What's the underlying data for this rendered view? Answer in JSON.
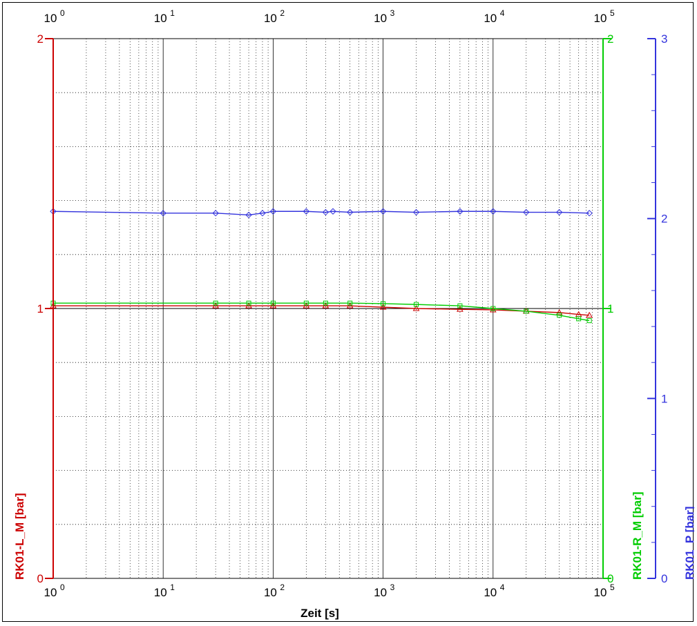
{
  "chart_data": {
    "type": "line",
    "x_scale": "log",
    "x_lim": [
      1,
      100000
    ],
    "x_ticks": [
      1,
      10,
      100,
      1000,
      10000,
      100000
    ],
    "x_tick_base": "10",
    "x_tick_exps": [
      "0",
      "1",
      "2",
      "3",
      "4",
      "5"
    ],
    "xlabel": "Zeit [s]",
    "grid": true,
    "axes": {
      "left": {
        "label": "RK01-L_M [bar]",
        "color": "#cc0000",
        "lim": [
          0,
          2
        ],
        "ticks": [
          "0",
          "1",
          "2"
        ]
      },
      "right1": {
        "label": "RK01-R_M [bar]",
        "color": "#00cc00",
        "lim": [
          0,
          2
        ],
        "ticks": [
          "0",
          "1",
          "2"
        ]
      },
      "right2": {
        "label": "RK01_P [bar]",
        "color": "#3333dd",
        "lim": [
          0,
          3
        ],
        "ticks": [
          "0",
          "1",
          "2",
          "3"
        ]
      }
    },
    "series": [
      {
        "axis": "left",
        "color": "#cc0000",
        "marker": "triangle",
        "points": [
          [
            1,
            1.01
          ],
          [
            30,
            1.01
          ],
          [
            60,
            1.01
          ],
          [
            100,
            1.01
          ],
          [
            200,
            1.01
          ],
          [
            300,
            1.01
          ],
          [
            500,
            1.01
          ],
          [
            1000,
            1.005
          ],
          [
            2000,
            1.0
          ],
          [
            5000,
            0.997
          ],
          [
            10000,
            0.995
          ],
          [
            20000,
            0.99
          ],
          [
            40000,
            0.985
          ],
          [
            60000,
            0.978
          ],
          [
            75000,
            0.975
          ]
        ]
      },
      {
        "axis": "right1",
        "color": "#00cc00",
        "marker": "square",
        "points": [
          [
            1,
            1.02
          ],
          [
            30,
            1.02
          ],
          [
            60,
            1.02
          ],
          [
            100,
            1.02
          ],
          [
            200,
            1.02
          ],
          [
            300,
            1.02
          ],
          [
            500,
            1.02
          ],
          [
            1000,
            1.018
          ],
          [
            2000,
            1.015
          ],
          [
            5000,
            1.01
          ],
          [
            10000,
            1.0
          ],
          [
            20000,
            0.99
          ],
          [
            40000,
            0.975
          ],
          [
            60000,
            0.962
          ],
          [
            75000,
            0.955
          ]
        ]
      },
      {
        "axis": "right2",
        "color": "#3333dd",
        "marker": "diamond",
        "points": [
          [
            1,
            2.04
          ],
          [
            10,
            2.03
          ],
          [
            30,
            2.03
          ],
          [
            60,
            2.02
          ],
          [
            80,
            2.03
          ],
          [
            100,
            2.04
          ],
          [
            200,
            2.04
          ],
          [
            300,
            2.035
          ],
          [
            350,
            2.04
          ],
          [
            500,
            2.035
          ],
          [
            1000,
            2.04
          ],
          [
            2000,
            2.035
          ],
          [
            5000,
            2.04
          ],
          [
            10000,
            2.04
          ],
          [
            20000,
            2.035
          ],
          [
            40000,
            2.035
          ],
          [
            75000,
            2.03
          ]
        ]
      }
    ]
  }
}
